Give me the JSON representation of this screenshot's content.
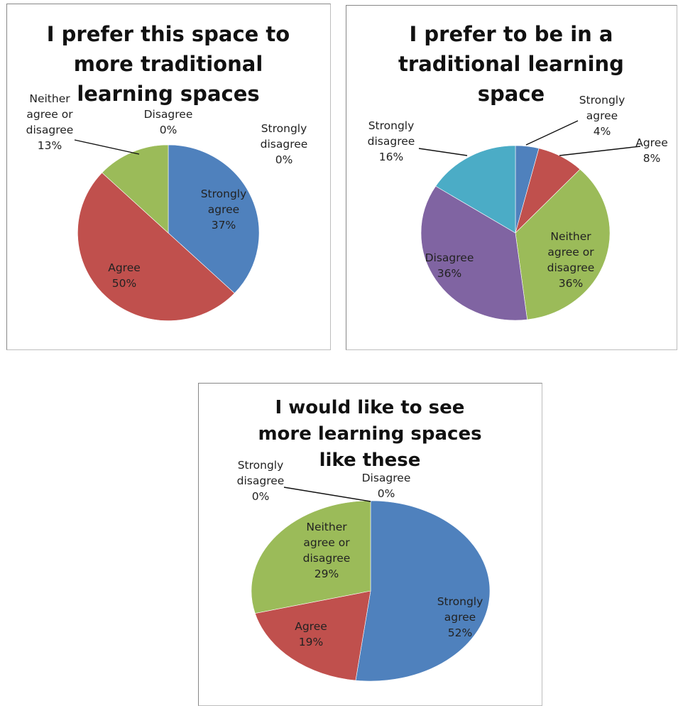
{
  "chart_data": [
    {
      "type": "pie",
      "title": "I prefer this space to more traditional learning spaces",
      "categories": [
        "Strongly agree",
        "Agree",
        "Neither agree or disagree",
        "Disagree",
        "Strongly disagree"
      ],
      "values": [
        37,
        50,
        13,
        0,
        0
      ],
      "labels": [
        [
          "Strongly",
          "agree",
          "37%"
        ],
        [
          "Agree",
          "50%"
        ],
        [
          "Neither",
          "agree or",
          "disagree",
          "13%"
        ],
        [
          "Disagree",
          "0%"
        ],
        [
          "Strongly",
          "disagree",
          "0%"
        ]
      ],
      "unit": "%",
      "legend": "none"
    },
    {
      "type": "pie",
      "title": "I prefer to be in a traditional learning space",
      "categories": [
        "Strongly agree",
        "Agree",
        "Neither agree or disagree",
        "Disagree",
        "Strongly disagree"
      ],
      "values": [
        4,
        8,
        36,
        36,
        16
      ],
      "labels": [
        [
          "Strongly",
          "agree",
          "4%"
        ],
        [
          "Agree",
          "8%"
        ],
        [
          "Neither",
          "agree or",
          "disagree",
          "36%"
        ],
        [
          "Disagree",
          "36%"
        ],
        [
          "Strongly",
          "disagree",
          "16%"
        ]
      ],
      "unit": "%",
      "legend": "none"
    },
    {
      "type": "pie",
      "title": "I would like to see more learning spaces like these",
      "categories": [
        "Strongly agree",
        "Agree",
        "Neither agree or disagree",
        "Strongly disagree",
        "Disagree"
      ],
      "values": [
        52,
        19,
        29,
        0,
        0
      ],
      "labels": [
        [
          "Strongly",
          "agree",
          "52%"
        ],
        [
          "Agree",
          "19%"
        ],
        [
          "Neither",
          "agree or",
          "disagree",
          "29%"
        ],
        [
          "Strongly",
          "disagree",
          "0%"
        ],
        [
          "Disagree",
          "0%"
        ]
      ],
      "unit": "%",
      "legend": "none"
    }
  ],
  "colors": [
    "#4F81BD",
    "#C0504D",
    "#9BBB59",
    "#8064A2",
    "#4BACC6"
  ]
}
